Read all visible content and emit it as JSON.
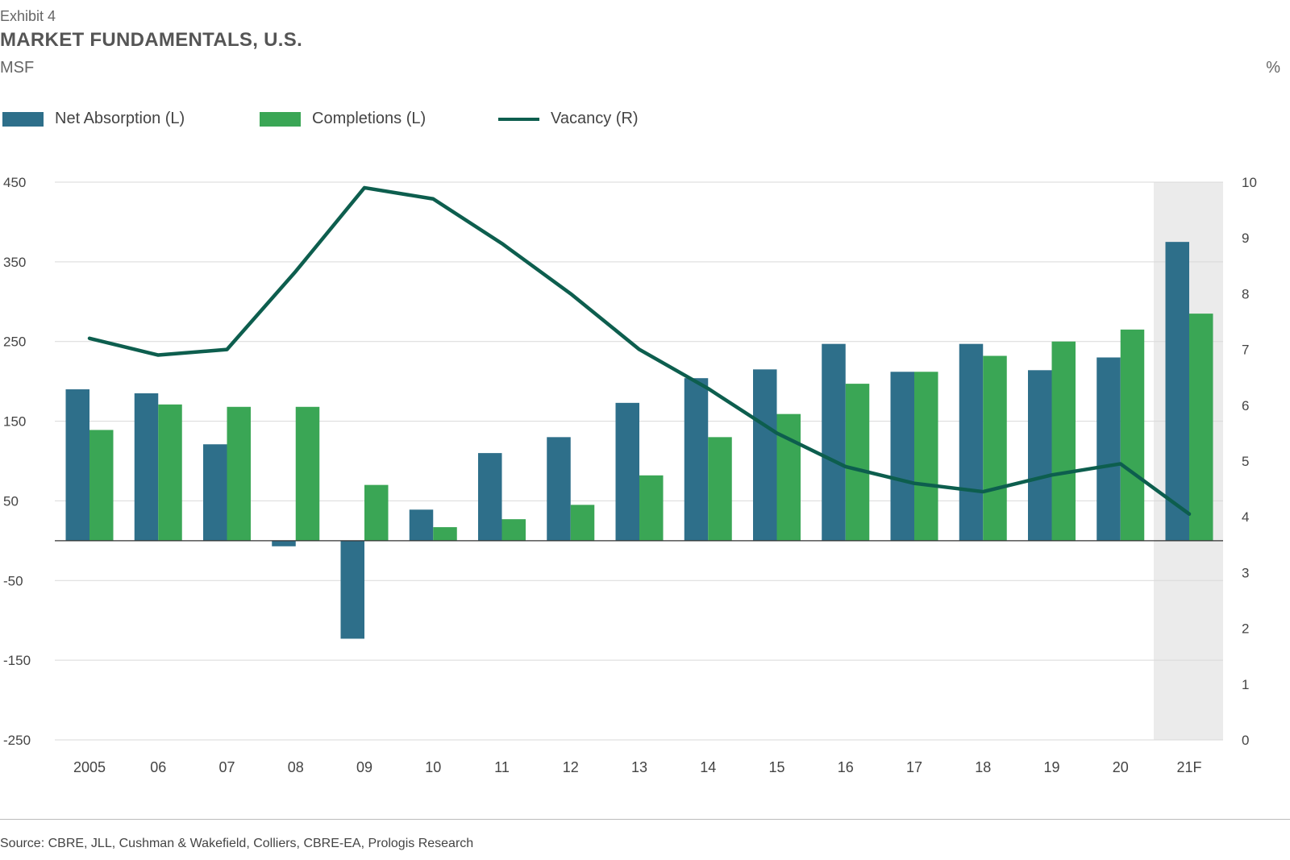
{
  "exhibit": "Exhibit 4",
  "title": "MARKET FUNDAMENTALS, U.S.",
  "left_unit": "MSF",
  "right_unit": "%",
  "source": "Source: CBRE, JLL, Cushman & Wakefield, Colliers, CBRE-EA, Prologis Research",
  "colors": {
    "net_absorption": "#2e6f8a",
    "completions": "#3aa655",
    "vacancy": "#0d5e4e",
    "forecast_shade": "#ebebeb",
    "grid": "#d9d9d9"
  },
  "legend": [
    {
      "label": "Net Absorption (L)",
      "type": "bar",
      "color": "#2e6f8a"
    },
    {
      "label": "Completions (L)",
      "type": "bar",
      "color": "#3aa655"
    },
    {
      "label": "Vacancy (R)",
      "type": "line",
      "color": "#0d5e4e"
    }
  ],
  "chart_data": {
    "type": "bar",
    "categories": [
      "2005",
      "06",
      "07",
      "08",
      "09",
      "10",
      "11",
      "12",
      "13",
      "14",
      "15",
      "16",
      "17",
      "18",
      "19",
      "20",
      "21F"
    ],
    "series": [
      {
        "name": "Net Absorption (L)",
        "type": "bar",
        "axis": "left",
        "values": [
          190,
          185,
          121,
          -7,
          -123,
          39,
          110,
          130,
          173,
          204,
          215,
          247,
          212,
          247,
          214,
          230,
          375
        ]
      },
      {
        "name": "Completions (L)",
        "type": "bar",
        "axis": "left",
        "values": [
          139,
          171,
          168,
          168,
          70,
          17,
          27,
          45,
          82,
          130,
          159,
          197,
          212,
          232,
          250,
          265,
          285
        ]
      },
      {
        "name": "Vacancy (R)",
        "type": "line",
        "axis": "right",
        "values": [
          7.2,
          6.9,
          7.0,
          8.4,
          9.9,
          9.7,
          8.9,
          8.0,
          7.0,
          6.3,
          5.5,
          4.9,
          4.6,
          4.45,
          4.75,
          4.95,
          4.05
        ]
      }
    ],
    "left_axis": {
      "ylim": [
        -250,
        450
      ],
      "ticks": [
        "450",
        "350",
        "250",
        "150",
        "50",
        "-50",
        "-150",
        "-250"
      ],
      "tick_values": [
        450,
        350,
        250,
        150,
        50,
        -50,
        -150,
        -250
      ]
    },
    "right_axis": {
      "ylim": [
        0,
        10
      ],
      "ticks": [
        "10",
        "9",
        "8",
        "7",
        "6",
        "5",
        "4",
        "3",
        "2",
        "1",
        "0"
      ],
      "tick_values": [
        10,
        9,
        8,
        7,
        6,
        5,
        4,
        3,
        2,
        1,
        0
      ]
    },
    "zero_line_value": 0,
    "forecast_category": "21F",
    "grid": true,
    "legend_position": "top-left"
  }
}
